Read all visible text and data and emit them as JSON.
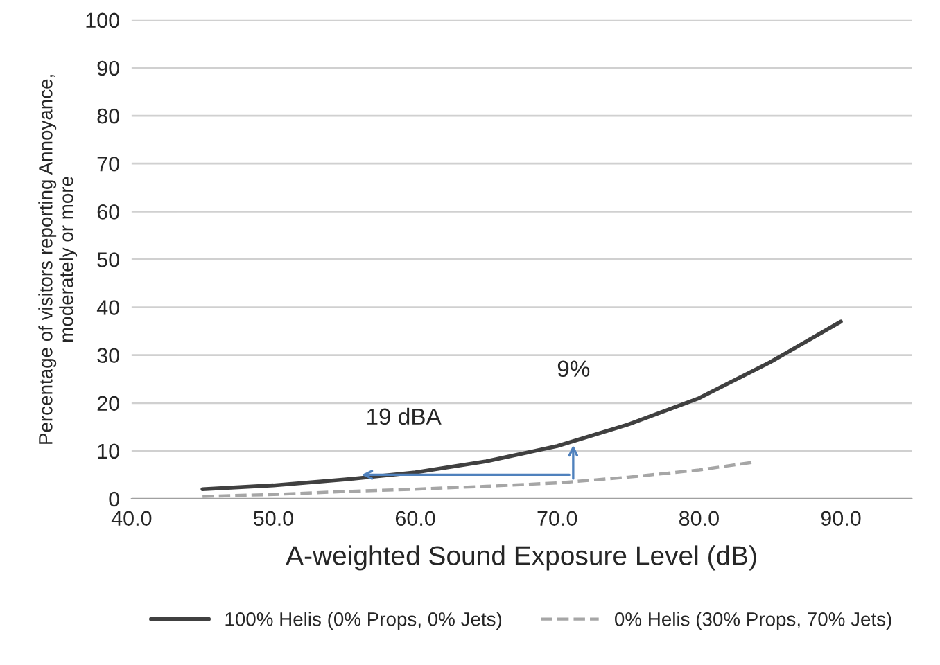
{
  "chart_data": {
    "type": "line",
    "xlabel": "A-weighted Sound Exposure Level (dB)",
    "ylabel": "Percentage of visitors reporting Annoyance,\nmoderately or more",
    "xlim": [
      40,
      95
    ],
    "xticks": [
      {
        "value": 40,
        "label": "40.0"
      },
      {
        "value": 50,
        "label": "50.0"
      },
      {
        "value": 60,
        "label": "60.0"
      },
      {
        "value": 70,
        "label": "70.0"
      },
      {
        "value": 80,
        "label": "80.0"
      },
      {
        "value": 90,
        "label": "90.0"
      }
    ],
    "ylim": [
      0,
      100
    ],
    "yticks": [
      0,
      10,
      20,
      30,
      40,
      50,
      60,
      70,
      80,
      90,
      100
    ],
    "grid": "y",
    "legend": "bottom",
    "series": [
      {
        "name": "100% Helis (0% Props, 0% Jets)",
        "color": "#404040",
        "line_style": "solid",
        "x": [
          45,
          50,
          55,
          60,
          65,
          70,
          75,
          80,
          85,
          90
        ],
        "values": [
          2,
          2.8,
          4,
          5.5,
          7.8,
          11,
          15.5,
          21,
          28.5,
          37
        ]
      },
      {
        "name": "0% Helis (30% Props, 70% Jets)",
        "color": "#a6a6a6",
        "line_style": "dashed",
        "x": [
          45,
          50,
          55,
          60,
          65,
          70,
          75,
          80,
          84
        ],
        "values": [
          0.5,
          0.9,
          1.5,
          2,
          2.6,
          3.3,
          4.5,
          6,
          7.7
        ]
      }
    ],
    "annotations": [
      "9%",
      "19 dBA"
    ]
  }
}
